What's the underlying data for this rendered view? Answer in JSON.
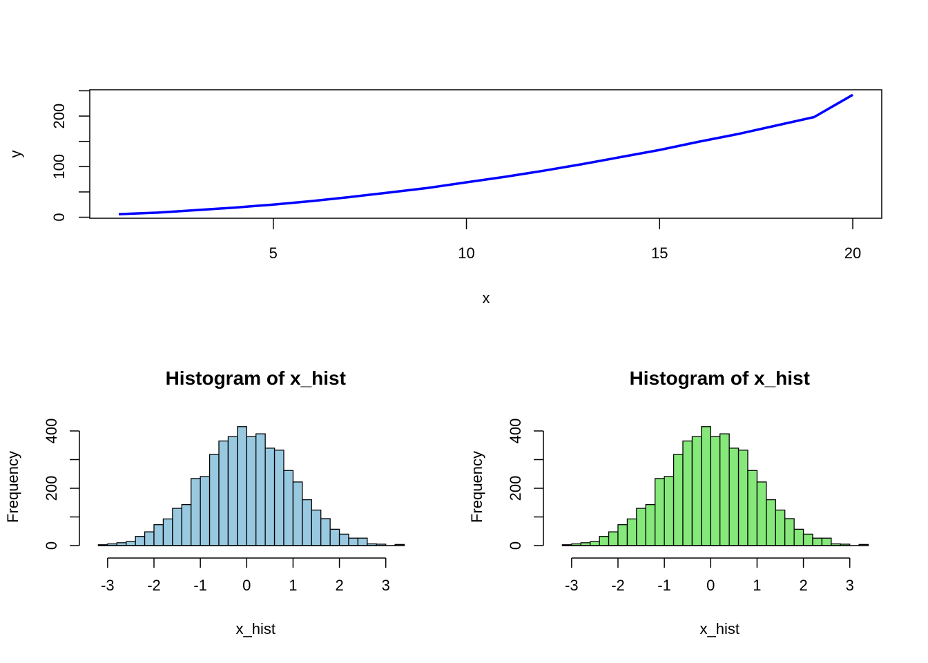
{
  "chart_data": [
    {
      "type": "line",
      "title": "",
      "xlabel": "x",
      "ylabel": "y",
      "xlim": [
        0.25,
        20.75
      ],
      "ylim": [
        -2,
        252
      ],
      "x_ticks": [
        "5",
        "10",
        "15",
        "20"
      ],
      "y_ticks": [
        "0",
        "100",
        "200"
      ],
      "line_color": "#0000ff",
      "series": [
        {
          "x": [
            1,
            2,
            3,
            4,
            5,
            6,
            7,
            8,
            9,
            10,
            11,
            12,
            13,
            14,
            15,
            16,
            17,
            18,
            19,
            20
          ],
          "values": [
            6,
            9,
            14,
            19,
            25,
            32,
            40,
            49,
            58,
            69,
            80,
            92,
            105,
            119,
            133,
            149,
            164,
            181,
            198,
            242
          ]
        }
      ]
    },
    {
      "type": "bar",
      "title": "Histogram of x_hist",
      "xlabel": "x_hist",
      "ylabel": "Frequency",
      "xlim": [
        -3.4,
        3.6
      ],
      "ylim": [
        0,
        400
      ],
      "x_ticks": [
        "-3",
        "-2",
        "-1",
        "0",
        "1",
        "2",
        "3"
      ],
      "y_ticks": [
        "0",
        "200",
        "400"
      ],
      "bar_color": "#99c9e0",
      "bin_width": 0.2,
      "bin_start": -3.2,
      "values": [
        3,
        6,
        10,
        14,
        32,
        48,
        73,
        93,
        130,
        143,
        234,
        241,
        318,
        365,
        380,
        415,
        380,
        390,
        340,
        333,
        262,
        222,
        160,
        124,
        94,
        57,
        40,
        26,
        26,
        6,
        5,
        0,
        4
      ]
    },
    {
      "type": "bar",
      "title": "Histogram of x_hist",
      "xlabel": "x_hist",
      "ylabel": "Frequency",
      "xlim": [
        -3.4,
        3.6
      ],
      "ylim": [
        0,
        400
      ],
      "x_ticks": [
        "-3",
        "-2",
        "-1",
        "0",
        "1",
        "2",
        "3"
      ],
      "y_ticks": [
        "0",
        "200",
        "400"
      ],
      "bar_color": "#86e87a",
      "bin_width": 0.2,
      "bin_start": -3.2,
      "values": [
        3,
        6,
        10,
        14,
        32,
        48,
        73,
        93,
        130,
        143,
        234,
        241,
        318,
        365,
        380,
        415,
        380,
        390,
        340,
        333,
        262,
        222,
        160,
        124,
        94,
        57,
        40,
        26,
        26,
        6,
        5,
        0,
        4
      ]
    }
  ]
}
